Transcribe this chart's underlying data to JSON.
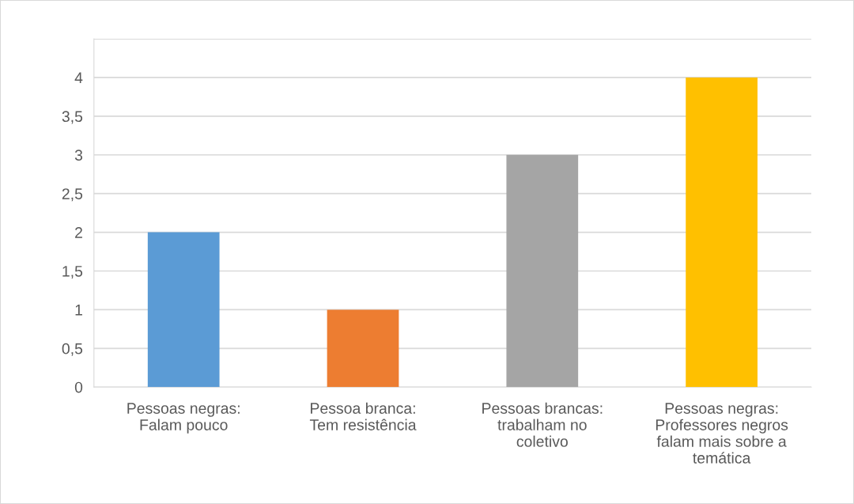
{
  "chart_data": {
    "type": "bar",
    "categories": [
      "Pessoas negras: Falam pouco",
      "Pessoa branca: Tem resistência",
      "Pessoas brancas: trabalham no coletivo",
      "Pessoas negras: Professores negros falam mais sobre a temática"
    ],
    "values": [
      2,
      1,
      3,
      4
    ],
    "colors": [
      "#5b9bd5",
      "#ed7d31",
      "#a5a5a5",
      "#ffc000"
    ],
    "ylim": [
      0,
      4.5
    ],
    "yticks": [
      0,
      {
        "value": 0.5,
        "label": "0,5"
      },
      1,
      {
        "value": 1.5,
        "label": "1,5"
      },
      2,
      {
        "value": 2.5,
        "label": "2,5"
      },
      3,
      {
        "value": 3.5,
        "label": "3,5"
      },
      4,
      {
        "value": 4.5,
        "label": null
      }
    ],
    "grid": "y"
  }
}
